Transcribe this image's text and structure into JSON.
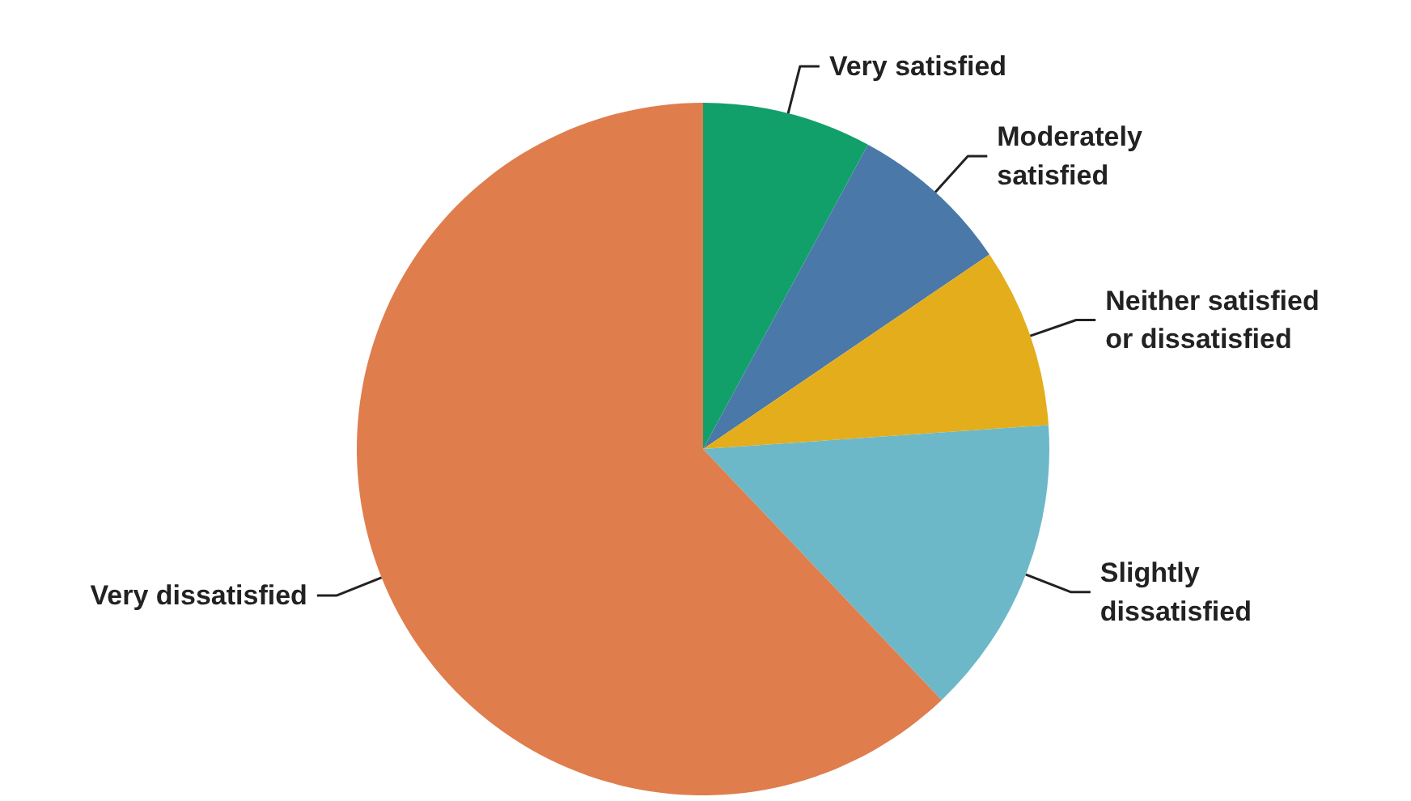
{
  "chart_data": {
    "type": "pie",
    "categories": [
      "Very satisfied",
      "Moderately\nsatisfied",
      "Neither satisfied\nor dissatisfied",
      "Slightly\ndissatisfied",
      "Very dissatisfied"
    ],
    "values": [
      7.9,
      7.6,
      8.4,
      14.0,
      62.1
    ],
    "colors": [
      "#12a06a",
      "#4a78a8",
      "#e3ad1c",
      "#6cb8c8",
      "#df7d4d"
    ]
  }
}
